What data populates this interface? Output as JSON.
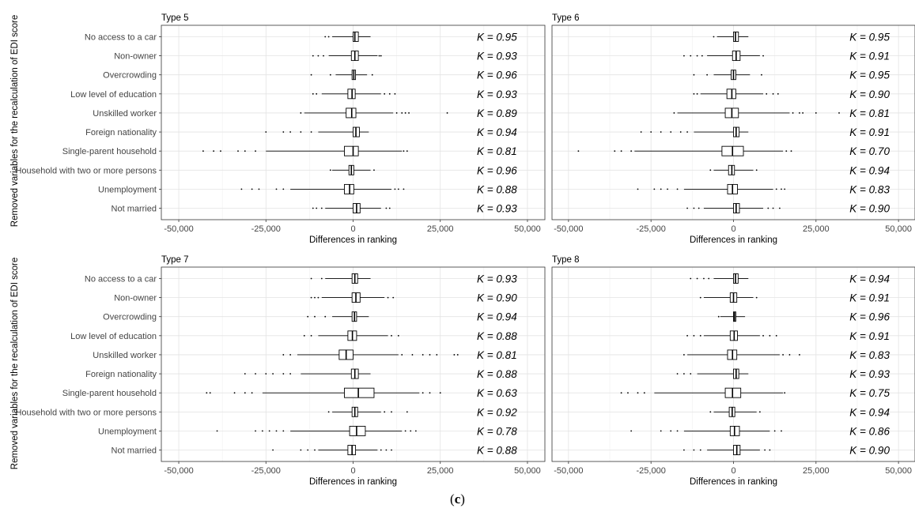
{
  "figure": {
    "y_axis_label": "Removed variables for the recalculation of EDI score",
    "x_axis_label": "Differences in ranking",
    "caption_open": "(",
    "caption_letter": "c",
    "caption_close": ")"
  },
  "chart_data": [
    {
      "type": "boxplot",
      "title": "Type 5",
      "xlabel": "Differences in ranking",
      "ylabel": "Removed variables for the recalculation of EDI score",
      "xlim": [
        -55000,
        55000
      ],
      "xticks": [
        -50000,
        -25000,
        0,
        25000,
        50000
      ],
      "xtick_labels": [
        "-50,000",
        "-25,000",
        "0",
        "25,000",
        "50,000"
      ],
      "grid": true,
      "rows": [
        {
          "label": "No access to a car",
          "k": "K = 0.95",
          "q1": 0,
          "median": 500,
          "q3": 1500,
          "wmin": -6000,
          "wmax": 5000,
          "outliers": [
            -8000,
            -7000
          ]
        },
        {
          "label": "Non-owner",
          "k": "K = 0.93",
          "q1": -500,
          "median": 500,
          "q3": 1500,
          "wmin": -7000,
          "wmax": 7000,
          "outliers": [
            -11500,
            -10000,
            -8500,
            7500,
            8000
          ]
        },
        {
          "label": "Overcrowding",
          "k": "K = 0.96",
          "q1": -300,
          "median": 200,
          "q3": 700,
          "wmin": -5000,
          "wmax": 4000,
          "outliers": [
            -12000,
            -6500,
            5500
          ]
        },
        {
          "label": "Low level of education",
          "k": "K = 0.93",
          "q1": -1500,
          "median": -300,
          "q3": 600,
          "wmin": -9000,
          "wmax": 8000,
          "outliers": [
            -11500,
            -10500,
            9000,
            10500,
            12000
          ]
        },
        {
          "label": "Unskilled worker",
          "k": "K = 0.89",
          "q1": -2000,
          "median": -400,
          "q3": 800,
          "wmin": -14000,
          "wmax": 11500,
          "outliers": [
            -15000,
            12500,
            14000,
            15000,
            16000,
            27000
          ]
        },
        {
          "label": "Foreign nationality",
          "k": "K = 0.94",
          "q1": 0,
          "median": 800,
          "q3": 1800,
          "wmin": -10000,
          "wmax": 4500,
          "outliers": [
            -25000,
            -20000,
            -18000,
            -15000,
            -12000
          ]
        },
        {
          "label": "Single-parent household",
          "k": "K = 0.81",
          "q1": -2500,
          "median": 0,
          "q3": 1500,
          "wmin": -25000,
          "wmax": 14000,
          "outliers": [
            -43000,
            -40000,
            -38000,
            -33000,
            -31000,
            -28000,
            14500,
            15500
          ]
        },
        {
          "label": "Household with two or more persons",
          "k": "K = 0.96",
          "q1": -1200,
          "median": -500,
          "q3": 200,
          "wmin": -6000,
          "wmax": 5000,
          "outliers": [
            -6500,
            6000
          ]
        },
        {
          "label": "Unemployment",
          "k": "K = 0.88",
          "q1": -2500,
          "median": -1000,
          "q3": 200,
          "wmin": -18000,
          "wmax": 11000,
          "outliers": [
            -32000,
            -29000,
            -27000,
            -22000,
            -20000,
            12000,
            13000,
            14500
          ]
        },
        {
          "label": "Not married",
          "k": "K = 0.93",
          "q1": 0,
          "median": 1000,
          "q3": 2000,
          "wmin": -8000,
          "wmax": 8000,
          "outliers": [
            -11500,
            -10500,
            -9000,
            9500,
            10500
          ]
        }
      ]
    },
    {
      "type": "boxplot",
      "title": "Type 6",
      "xlabel": "Differences in ranking",
      "xlim": [
        -55000,
        55000
      ],
      "xticks": [
        -50000,
        -25000,
        0,
        25000,
        50000
      ],
      "xtick_labels": [
        "-50,000",
        "-25,000",
        "0",
        "25,000",
        "50,000"
      ],
      "grid": true,
      "rows": [
        {
          "label": "No access to a car",
          "k": "K = 0.95",
          "q1": 0,
          "median": 600,
          "q3": 1500,
          "wmin": -5000,
          "wmax": 4500,
          "outliers": [
            -6000
          ]
        },
        {
          "label": "Non-owner",
          "k": "K = 0.91",
          "q1": -300,
          "median": 800,
          "q3": 2000,
          "wmin": -8000,
          "wmax": 8000,
          "outliers": [
            -15000,
            -13000,
            -11000,
            -9500,
            9000
          ]
        },
        {
          "label": "Overcrowding",
          "k": "K = 0.95",
          "q1": -700,
          "median": 0,
          "q3": 700,
          "wmin": -6000,
          "wmax": 5000,
          "outliers": [
            -12000,
            -8000,
            8500
          ]
        },
        {
          "label": "Low level of education",
          "k": "K = 0.90",
          "q1": -2000,
          "median": -500,
          "q3": 700,
          "wmin": -10000,
          "wmax": 9000,
          "outliers": [
            -12000,
            -11000,
            10000,
            12000,
            13500
          ]
        },
        {
          "label": "Unskilled worker",
          "k": "K = 0.81",
          "q1": -2500,
          "median": -500,
          "q3": 1500,
          "wmin": -17000,
          "wmax": 17000,
          "outliers": [
            -18000,
            18000,
            20000,
            21000,
            25000,
            32000
          ]
        },
        {
          "label": "Foreign nationality",
          "k": "K = 0.91",
          "q1": 0,
          "median": 800,
          "q3": 1700,
          "wmin": -12000,
          "wmax": 4500,
          "outliers": [
            -28000,
            -25000,
            -22000,
            -19000,
            -16000,
            -14000
          ]
        },
        {
          "label": "Single-parent household",
          "k": "K = 0.70",
          "q1": -3500,
          "median": -300,
          "q3": 3000,
          "wmin": -30000,
          "wmax": 15000,
          "outliers": [
            -47000,
            -36000,
            -34000,
            -31000,
            16000,
            17500
          ]
        },
        {
          "label": "Household with two or more persons",
          "k": "K = 0.94",
          "q1": -1500,
          "median": -500,
          "q3": 300,
          "wmin": -6000,
          "wmax": 6000,
          "outliers": [
            -7000,
            7000
          ]
        },
        {
          "label": "Unemployment",
          "k": "K = 0.83",
          "q1": -1800,
          "median": -300,
          "q3": 1200,
          "wmin": -15000,
          "wmax": 12000,
          "outliers": [
            -29000,
            -24000,
            -22000,
            -20000,
            -17000,
            13000,
            14500,
            15500
          ]
        },
        {
          "label": "Not married",
          "k": "K = 0.90",
          "q1": 0,
          "median": 800,
          "q3": 1800,
          "wmin": -9000,
          "wmax": 9000,
          "outliers": [
            -14000,
            -12000,
            -10500,
            10500,
            12000,
            14000
          ]
        }
      ]
    },
    {
      "type": "boxplot",
      "title": "Type 7",
      "xlabel": "Differences in ranking",
      "ylabel": "Removed variables for the recalculation of EDI score",
      "xlim": [
        -55000,
        55000
      ],
      "xticks": [
        -50000,
        -25000,
        0,
        25000,
        50000
      ],
      "xtick_labels": [
        "-50,000",
        "-25,000",
        "0",
        "25,000",
        "50,000"
      ],
      "grid": true,
      "rows": [
        {
          "label": "No access to a car",
          "k": "K = 0.93",
          "q1": -300,
          "median": 500,
          "q3": 1300,
          "wmin": -8000,
          "wmax": 5000,
          "outliers": [
            -12000,
            -9000
          ]
        },
        {
          "label": "Non-owner",
          "k": "K = 0.90",
          "q1": -300,
          "median": 800,
          "q3": 2000,
          "wmin": -9000,
          "wmax": 9000,
          "outliers": [
            -12000,
            -11000,
            -10000,
            10000,
            11500
          ]
        },
        {
          "label": "Overcrowding",
          "k": "K = 0.94",
          "q1": -300,
          "median": 400,
          "q3": 1000,
          "wmin": -6000,
          "wmax": 4500,
          "outliers": [
            -13000,
            -11000,
            -8000
          ]
        },
        {
          "label": "Low level of education",
          "k": "K = 0.88",
          "q1": -1500,
          "median": -200,
          "q3": 1000,
          "wmin": -10000,
          "wmax": 10000,
          "outliers": [
            -14000,
            -12000,
            11000,
            13000
          ]
        },
        {
          "label": "Unskilled worker",
          "k": "K = 0.81",
          "q1": -4000,
          "median": -2000,
          "q3": 0,
          "wmin": -16000,
          "wmax": 13000,
          "outliers": [
            -20000,
            -18000,
            14000,
            17000,
            20000,
            22000,
            24000,
            29000,
            30000
          ]
        },
        {
          "label": "Foreign nationality",
          "k": "K = 0.88",
          "q1": -500,
          "median": 500,
          "q3": 1500,
          "wmin": -15000,
          "wmax": 5000,
          "outliers": [
            -31000,
            -28000,
            -25000,
            -23000,
            -20000,
            -18000
          ]
        },
        {
          "label": "Single-parent household",
          "k": "K = 0.63",
          "q1": -2500,
          "median": 1500,
          "q3": 6000,
          "wmin": -26000,
          "wmax": 19000,
          "outliers": [
            -42000,
            -41000,
            -34000,
            -31000,
            -29000,
            20000,
            22000,
            25000
          ]
        },
        {
          "label": "Household with two or more persons",
          "k": "K = 0.92",
          "q1": -300,
          "median": 500,
          "q3": 1300,
          "wmin": -6000,
          "wmax": 8000,
          "outliers": [
            -7000,
            9000,
            11000,
            15500
          ]
        },
        {
          "label": "Unemployment",
          "k": "K = 0.78",
          "q1": -1000,
          "median": 1000,
          "q3": 3500,
          "wmin": -18000,
          "wmax": 14000,
          "outliers": [
            -39000,
            -28000,
            -26000,
            -24000,
            -22000,
            -20000,
            15000,
            16500,
            18000
          ]
        },
        {
          "label": "Not married",
          "k": "K = 0.88",
          "q1": -1500,
          "median": -300,
          "q3": 700,
          "wmin": -10000,
          "wmax": 7000,
          "outliers": [
            -23000,
            -15000,
            -13000,
            -11000,
            8000,
            9500,
            11000
          ]
        }
      ]
    },
    {
      "type": "boxplot",
      "title": "Type 8",
      "xlabel": "Differences in ranking",
      "xlim": [
        -55000,
        55000
      ],
      "xticks": [
        -50000,
        -25000,
        0,
        25000,
        50000
      ],
      "xtick_labels": [
        "-50,000",
        "-25,000",
        "0",
        "25,000",
        "50,000"
      ],
      "grid": true,
      "rows": [
        {
          "label": "No access to a car",
          "k": "K = 0.94",
          "q1": 0,
          "median": 600,
          "q3": 1400,
          "wmin": -6000,
          "wmax": 4500,
          "outliers": [
            -13000,
            -11000,
            -9000,
            -7500
          ]
        },
        {
          "label": "Non-owner",
          "k": "K = 0.91",
          "q1": -1000,
          "median": 0,
          "q3": 1000,
          "wmin": -9000,
          "wmax": 6000,
          "outliers": [
            -10000,
            7000
          ]
        },
        {
          "label": "Overcrowding",
          "k": "K = 0.96",
          "q1": 0,
          "median": 300,
          "q3": 700,
          "wmin": -4000,
          "wmax": 3500,
          "outliers": [
            -4500
          ]
        },
        {
          "label": "Low level of education",
          "k": "K = 0.91",
          "q1": -1000,
          "median": 200,
          "q3": 1200,
          "wmin": -9000,
          "wmax": 8000,
          "outliers": [
            -14000,
            -12000,
            -10000,
            9000,
            11000,
            13000
          ]
        },
        {
          "label": "Unskilled worker",
          "k": "K = 0.83",
          "q1": -1800,
          "median": -300,
          "q3": 1000,
          "wmin": -14000,
          "wmax": 14000,
          "outliers": [
            -15000,
            15000,
            17000,
            20000
          ]
        },
        {
          "label": "Foreign nationality",
          "k": "K = 0.93",
          "q1": 0,
          "median": 800,
          "q3": 1600,
          "wmin": -11000,
          "wmax": 4500,
          "outliers": [
            -17000,
            -15000,
            -13000
          ]
        },
        {
          "label": "Single-parent household",
          "k": "K = 0.75",
          "q1": -2500,
          "median": -300,
          "q3": 2200,
          "wmin": -24000,
          "wmax": 15000,
          "outliers": [
            -34000,
            -32000,
            -29000,
            -27000,
            15500
          ]
        },
        {
          "label": "Household with two or more persons",
          "k": "K = 0.94",
          "q1": -1300,
          "median": -400,
          "q3": 400,
          "wmin": -6000,
          "wmax": 7000,
          "outliers": [
            -7000,
            8000
          ]
        },
        {
          "label": "Unemployment",
          "k": "K = 0.86",
          "q1": -1000,
          "median": 300,
          "q3": 1800,
          "wmin": -15000,
          "wmax": 11000,
          "outliers": [
            -31000,
            -22000,
            -19000,
            -17000,
            12500,
            14500
          ]
        },
        {
          "label": "Not married",
          "k": "K = 0.90",
          "q1": 0,
          "median": 1000,
          "q3": 2000,
          "wmin": -8000,
          "wmax": 8000,
          "outliers": [
            -15000,
            -12000,
            -10000,
            9500,
            11000
          ]
        }
      ]
    }
  ]
}
